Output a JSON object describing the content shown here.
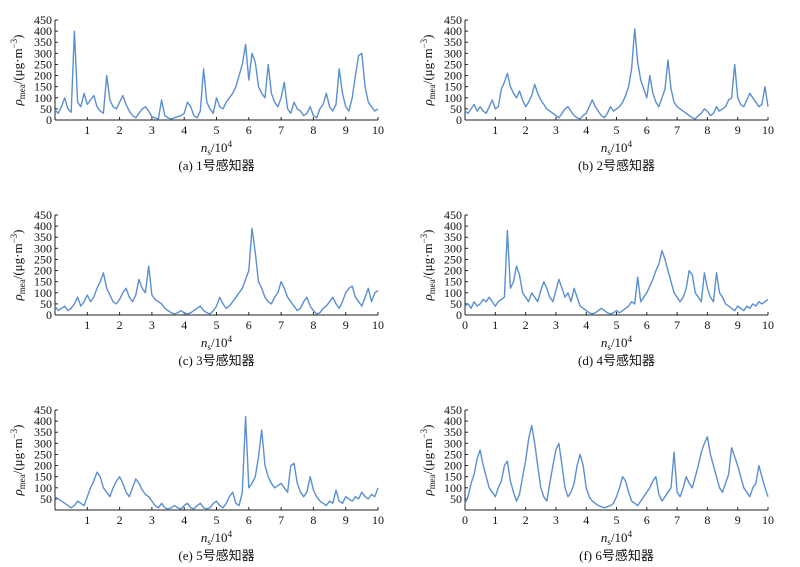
{
  "chart_data": [
    {
      "type": "line",
      "caption": "(a) 1号感知器",
      "xlabel": "n_s/10^4",
      "ylabel": "ρ_mea/(μg·m⁻³)",
      "xlim": [
        0,
        10
      ],
      "ylim": [
        0,
        450
      ],
      "xticks": [
        "1",
        "2",
        "3",
        "4",
        "5",
        "6",
        "7",
        "8",
        "9",
        "10"
      ],
      "yticks": [
        "0",
        "50",
        "100",
        "150",
        "200",
        "250",
        "300",
        "350",
        "400",
        "450"
      ],
      "color": "#5b8fd0",
      "series": [
        {
          "values": [
            45,
            30,
            60,
            100,
            50,
            35,
            400,
            80,
            60,
            120,
            70,
            90,
            110,
            60,
            40,
            30,
            200,
            90,
            60,
            50,
            80,
            110,
            70,
            40,
            20,
            10,
            30,
            50,
            60,
            40,
            15,
            10,
            5,
            90,
            20,
            10,
            5,
            10,
            15,
            20,
            30,
            80,
            60,
            20,
            10,
            40,
            230,
            80,
            50,
            30,
            100,
            60,
            50,
            80,
            100,
            120,
            150,
            200,
            250,
            340,
            180,
            300,
            260,
            150,
            120,
            100,
            250,
            120,
            80,
            60,
            100,
            170,
            50,
            30,
            80,
            50,
            40,
            20,
            30,
            60,
            20,
            10,
            50,
            70,
            120,
            60,
            40,
            70,
            230,
            120,
            60,
            40,
            100,
            200,
            290,
            300,
            150,
            80,
            60,
            40,
            50
          ]
        }
      ]
    },
    {
      "type": "line",
      "caption": "(b) 2号感知器",
      "xlabel": "n_s/10^4",
      "ylabel": "ρ_mea/(μg·m⁻³)",
      "xlim": [
        0,
        10
      ],
      "ylim": [
        0,
        450
      ],
      "xticks": [
        "1",
        "2",
        "3",
        "4",
        "5",
        "6",
        "7",
        "8",
        "9",
        "10"
      ],
      "yticks": [
        "0",
        "50",
        "100",
        "150",
        "200",
        "250",
        "300",
        "350",
        "400",
        "450"
      ],
      "color": "#5b8fd0",
      "series": [
        {
          "values": [
            40,
            30,
            50,
            70,
            40,
            60,
            40,
            30,
            60,
            90,
            50,
            60,
            140,
            170,
            210,
            150,
            120,
            100,
            130,
            90,
            60,
            80,
            110,
            160,
            120,
            90,
            70,
            50,
            40,
            30,
            20,
            10,
            30,
            50,
            60,
            40,
            20,
            10,
            5,
            20,
            30,
            60,
            90,
            60,
            40,
            20,
            10,
            30,
            60,
            40,
            50,
            60,
            80,
            110,
            150,
            230,
            410,
            260,
            180,
            140,
            100,
            200,
            120,
            80,
            60,
            100,
            140,
            270,
            140,
            80,
            60,
            50,
            40,
            30,
            20,
            10,
            5,
            20,
            30,
            50,
            40,
            20,
            30,
            60,
            40,
            50,
            60,
            90,
            100,
            250,
            100,
            70,
            60,
            90,
            120,
            100,
            80,
            60,
            70,
            150,
            60
          ]
        }
      ]
    },
    {
      "type": "line",
      "caption": "(c) 3号感知器",
      "xlabel": "n_s/10^4",
      "ylabel": "ρ_mea/(μg·m⁻³)",
      "xlim": [
        0,
        10
      ],
      "ylim": [
        0,
        450
      ],
      "xticks": [
        "1",
        "2",
        "3",
        "4",
        "5",
        "6",
        "7",
        "8",
        "9",
        "10"
      ],
      "yticks": [
        "0",
        "50",
        "100",
        "150",
        "200",
        "250",
        "300",
        "350",
        "400",
        "450"
      ],
      "color": "#5b8fd0",
      "series": [
        {
          "values": [
            40,
            20,
            30,
            40,
            20,
            30,
            50,
            80,
            40,
            60,
            90,
            60,
            80,
            120,
            150,
            190,
            120,
            90,
            60,
            50,
            70,
            100,
            120,
            80,
            60,
            90,
            160,
            120,
            100,
            220,
            90,
            70,
            60,
            50,
            30,
            20,
            10,
            5,
            10,
            20,
            10,
            5,
            10,
            20,
            30,
            40,
            20,
            10,
            5,
            20,
            40,
            80,
            50,
            30,
            40,
            60,
            80,
            100,
            120,
            160,
            200,
            390,
            280,
            150,
            120,
            80,
            60,
            50,
            80,
            100,
            150,
            120,
            80,
            60,
            40,
            20,
            30,
            60,
            80,
            40,
            20,
            5,
            10,
            30,
            40,
            60,
            80,
            50,
            30,
            60,
            100,
            120,
            130,
            80,
            60,
            40,
            80,
            120,
            60,
            100,
            110
          ]
        }
      ]
    },
    {
      "type": "line",
      "caption": "(d) 4号感知器",
      "xlabel": "n_s/10^4",
      "ylabel": "ρ_mea/(μg·m⁻³)",
      "xlim": [
        0,
        10
      ],
      "ylim": [
        0,
        450
      ],
      "xticks": [
        "0",
        "1",
        "2",
        "3",
        "4",
        "5",
        "6",
        "7",
        "8",
        "9",
        "10"
      ],
      "yticks": [
        "0",
        "50",
        "100",
        "150",
        "200",
        "250",
        "300",
        "350",
        "400",
        "450"
      ],
      "color": "#5b8fd0",
      "series": [
        {
          "values": [
            40,
            50,
            30,
            60,
            40,
            50,
            70,
            60,
            80,
            60,
            40,
            60,
            70,
            80,
            380,
            120,
            150,
            220,
            180,
            100,
            80,
            60,
            100,
            80,
            60,
            110,
            150,
            120,
            80,
            60,
            110,
            160,
            120,
            80,
            100,
            60,
            120,
            80,
            40,
            30,
            20,
            10,
            5,
            10,
            20,
            30,
            20,
            10,
            5,
            10,
            20,
            10,
            20,
            30,
            40,
            60,
            50,
            170,
            60,
            80,
            100,
            130,
            160,
            200,
            230,
            290,
            250,
            200,
            150,
            100,
            80,
            60,
            80,
            120,
            200,
            180,
            100,
            80,
            60,
            190,
            120,
            80,
            60,
            190,
            100,
            80,
            50,
            40,
            30,
            20,
            40,
            30,
            20,
            40,
            30,
            50,
            40,
            60,
            50,
            60,
            70
          ]
        }
      ]
    },
    {
      "type": "line",
      "caption": "(e) 5号感知器",
      "xlabel": "n_s/10^4",
      "ylabel": "ρ_mea/(μg·m⁻³)",
      "xlim": [
        0,
        10
      ],
      "ylim": [
        0,
        450
      ],
      "xticks": [
        "1",
        "2",
        "3",
        "4",
        "5",
        "6",
        "7",
        "8",
        "9",
        "10"
      ],
      "yticks": [
        "50",
        "100",
        "150",
        "200",
        "250",
        "300",
        "350",
        "400",
        "450"
      ],
      "color": "#5b8fd0",
      "series": [
        {
          "values": [
            60,
            50,
            40,
            30,
            20,
            10,
            20,
            40,
            30,
            20,
            60,
            100,
            130,
            170,
            150,
            100,
            80,
            60,
            100,
            130,
            150,
            120,
            80,
            60,
            100,
            140,
            120,
            90,
            70,
            60,
            40,
            20,
            10,
            30,
            10,
            5,
            10,
            20,
            10,
            5,
            20,
            30,
            10,
            5,
            20,
            30,
            10,
            5,
            10,
            30,
            40,
            20,
            10,
            30,
            60,
            80,
            30,
            20,
            80,
            420,
            100,
            120,
            150,
            240,
            360,
            200,
            150,
            120,
            100,
            110,
            120,
            100,
            80,
            200,
            210,
            120,
            80,
            60,
            80,
            150,
            90,
            60,
            40,
            30,
            20,
            40,
            30,
            90,
            40,
            30,
            60,
            50,
            40,
            60,
            50,
            80,
            60,
            50,
            70,
            60,
            100
          ]
        }
      ]
    },
    {
      "type": "line",
      "caption": "(f) 6号感知器",
      "xlabel": "n_s/10^4",
      "ylabel": "ρ_mea/(μg·m⁻³)",
      "xlim": [
        0,
        10
      ],
      "ylim": [
        0,
        450
      ],
      "xticks": [
        "0",
        "1",
        "2",
        "3",
        "4",
        "5",
        "6",
        "7",
        "8",
        "9",
        "10"
      ],
      "yticks": [
        "50",
        "100",
        "150",
        "200",
        "250",
        "300",
        "350",
        "400",
        "450"
      ],
      "color": "#5b8fd0",
      "series": [
        {
          "values": [
            30,
            60,
            120,
            160,
            230,
            270,
            200,
            150,
            100,
            80,
            60,
            100,
            130,
            200,
            220,
            130,
            80,
            40,
            70,
            150,
            220,
            320,
            380,
            300,
            200,
            100,
            60,
            40,
            120,
            200,
            270,
            300,
            200,
            100,
            60,
            80,
            120,
            200,
            250,
            200,
            100,
            60,
            40,
            30,
            20,
            15,
            10,
            15,
            20,
            30,
            60,
            100,
            150,
            130,
            80,
            40,
            30,
            20,
            40,
            60,
            80,
            100,
            130,
            150,
            70,
            40,
            60,
            80,
            100,
            260,
            80,
            60,
            100,
            150,
            120,
            100,
            150,
            200,
            260,
            300,
            330,
            250,
            200,
            150,
            100,
            80,
            120,
            160,
            280,
            240,
            200,
            150,
            100,
            80,
            60,
            100,
            120,
            200,
            150,
            100,
            60
          ]
        }
      ]
    }
  ]
}
